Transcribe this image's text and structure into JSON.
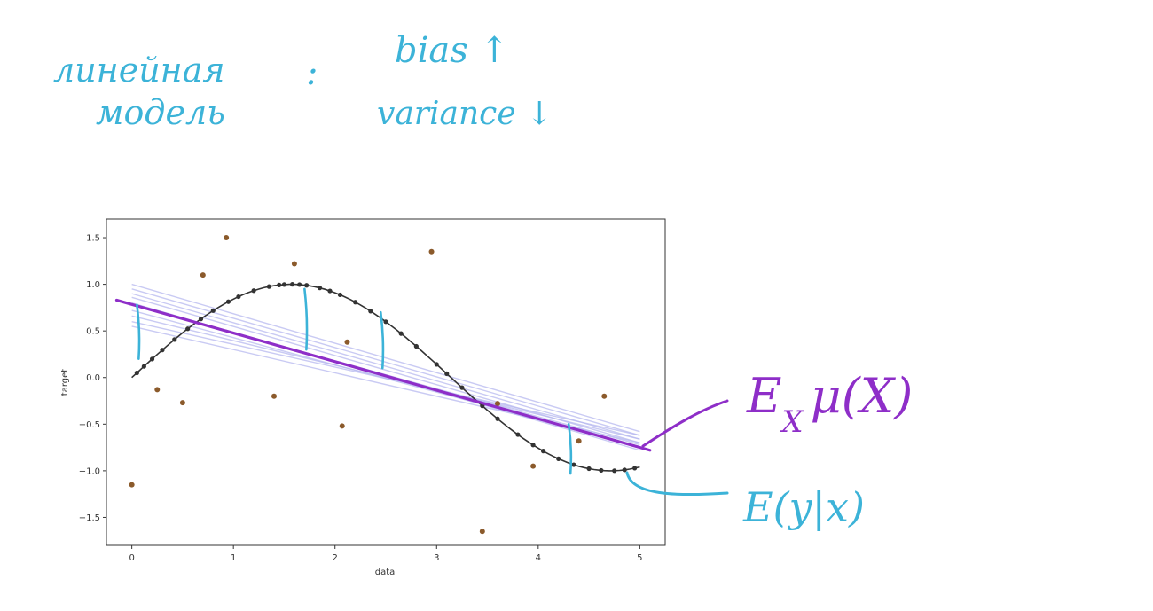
{
  "notes": {
    "line1": "линейная",
    "line2": "модель",
    "colon": ":",
    "bias": "bias ↑",
    "variance": "variance ↓"
  },
  "annotations": {
    "expectation_model": "E",
    "expectation_model_sub": "X",
    "expectation_model_rest": "μ(X)",
    "true_mean": "E(y|x)"
  },
  "colors": {
    "cyan_ink": "#3cb3d8",
    "purple_ink": "#8e2ec8",
    "true_curve": "#333333",
    "scatter_points": "#8b5a2b",
    "bootstrap_lines": "#b7b9f0"
  },
  "chart_data": {
    "type": "scatter",
    "xlabel": "data",
    "ylabel": "target",
    "xlim": [
      -0.25,
      5.25
    ],
    "ylim": [
      -1.8,
      1.7
    ],
    "x_ticks": [
      0,
      1,
      2,
      3,
      4,
      5
    ],
    "y_ticks": [
      1.5,
      1.0,
      0.5,
      0.0,
      -0.5,
      -1.0,
      -1.5
    ],
    "grid": false,
    "true_function": "sin(x)",
    "noisy_points": [
      {
        "x": 0.0,
        "y": -1.15
      },
      {
        "x": 0.25,
        "y": -0.13
      },
      {
        "x": 0.5,
        "y": -0.27
      },
      {
        "x": 0.7,
        "y": 1.1
      },
      {
        "x": 0.93,
        "y": 1.5
      },
      {
        "x": 1.4,
        "y": -0.2
      },
      {
        "x": 1.6,
        "y": 1.22
      },
      {
        "x": 2.07,
        "y": -0.52
      },
      {
        "x": 2.12,
        "y": 0.38
      },
      {
        "x": 2.95,
        "y": 1.35
      },
      {
        "x": 3.45,
        "y": -1.65
      },
      {
        "x": 3.6,
        "y": -0.28
      },
      {
        "x": 3.95,
        "y": -0.95
      },
      {
        "x": 4.4,
        "y": -0.68
      },
      {
        "x": 4.65,
        "y": -0.2
      }
    ],
    "true_points_x": [
      0.05,
      0.12,
      0.2,
      0.3,
      0.42,
      0.55,
      0.68,
      0.8,
      0.95,
      1.05,
      1.2,
      1.35,
      1.45,
      1.5,
      1.58,
      1.65,
      1.72,
      1.85,
      1.95,
      2.05,
      2.2,
      2.35,
      2.5,
      2.65,
      2.8,
      3.0,
      3.1,
      3.25,
      3.45,
      3.6,
      3.8,
      3.95,
      4.05,
      4.2,
      4.35,
      4.5,
      4.62,
      4.75,
      4.85,
      4.95
    ],
    "bootstrap_fits": [
      {
        "y0": 1.0,
        "y5": -0.58
      },
      {
        "y0": 0.95,
        "y5": -0.62
      },
      {
        "y0": 0.9,
        "y5": -0.66
      },
      {
        "y0": 0.86,
        "y5": -0.7
      },
      {
        "y0": 0.78,
        "y5": -0.72
      },
      {
        "y0": 0.72,
        "y5": -0.74
      },
      {
        "y0": 0.66,
        "y5": -0.66
      },
      {
        "y0": 0.6,
        "y5": -0.62
      },
      {
        "y0": 0.55,
        "y5": -0.7
      },
      {
        "y0": 0.8,
        "y5": -0.78
      }
    ],
    "mean_fit": {
      "x": [
        -0.15,
        5.1
      ],
      "y": [
        0.83,
        -0.78
      ]
    },
    "residual_markers": [
      {
        "x": 0.05,
        "y_top": 0.78,
        "y_bottom": 0.2
      },
      {
        "x": 1.7,
        "y_top": 0.95,
        "y_bottom": 0.3
      },
      {
        "x": 2.45,
        "y_top": 0.7,
        "y_bottom": 0.1
      },
      {
        "x": 4.3,
        "y_top": -0.5,
        "y_bottom": -1.03
      }
    ]
  }
}
